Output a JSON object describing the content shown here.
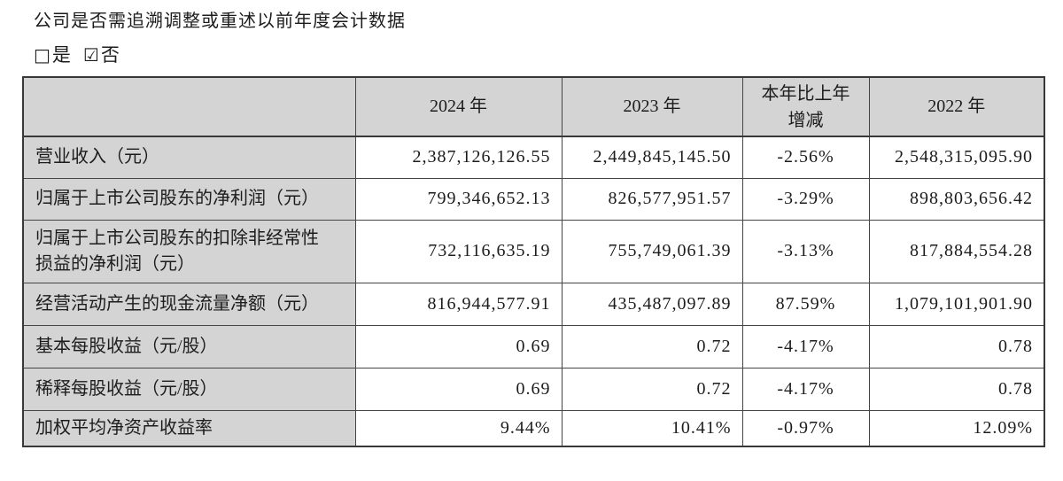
{
  "question": "公司是否需追溯调整或重述以前年度会计数据",
  "checkboxes": {
    "yes": {
      "glyph": "□",
      "label": "是",
      "checked": false
    },
    "no": {
      "glyph": "☑",
      "label": "否",
      "checked": true
    }
  },
  "table": {
    "columns": [
      "",
      "2024 年",
      "2023 年",
      "本年比上年增减",
      "2022 年"
    ],
    "rows": [
      {
        "label": "营业收入（元）",
        "values": [
          "2,387,126,126.55",
          "2,449,845,145.50",
          "-2.56%",
          "2,548,315,095.90"
        ]
      },
      {
        "label": "归属于上市公司股东的净利润（元）",
        "values": [
          "799,346,652.13",
          "826,577,951.57",
          "-3.29%",
          "898,803,656.42"
        ]
      },
      {
        "label": "归属于上市公司股东的扣除非经常性损益的净利润（元）",
        "values": [
          "732,116,635.19",
          "755,749,061.39",
          "-3.13%",
          "817,884,554.28"
        ]
      },
      {
        "label": "经营活动产生的现金流量净额（元）",
        "values": [
          "816,944,577.91",
          "435,487,097.89",
          "87.59%",
          "1,079,101,901.90"
        ]
      },
      {
        "label": "基本每股收益（元/股）",
        "values": [
          "0.69",
          "0.72",
          "-4.17%",
          "0.78"
        ]
      },
      {
        "label": "稀释每股收益（元/股）",
        "values": [
          "0.69",
          "0.72",
          "-4.17%",
          "0.78"
        ]
      },
      {
        "label": "加权平均净资产收益率",
        "values": [
          "9.44%",
          "10.41%",
          "-0.97%",
          "12.09%"
        ]
      }
    ]
  },
  "colors": {
    "shaded_cell_bg": "#d4d4d4",
    "border": "#454545",
    "text": "#1c1c1c",
    "page_bg": "#ffffff"
  }
}
